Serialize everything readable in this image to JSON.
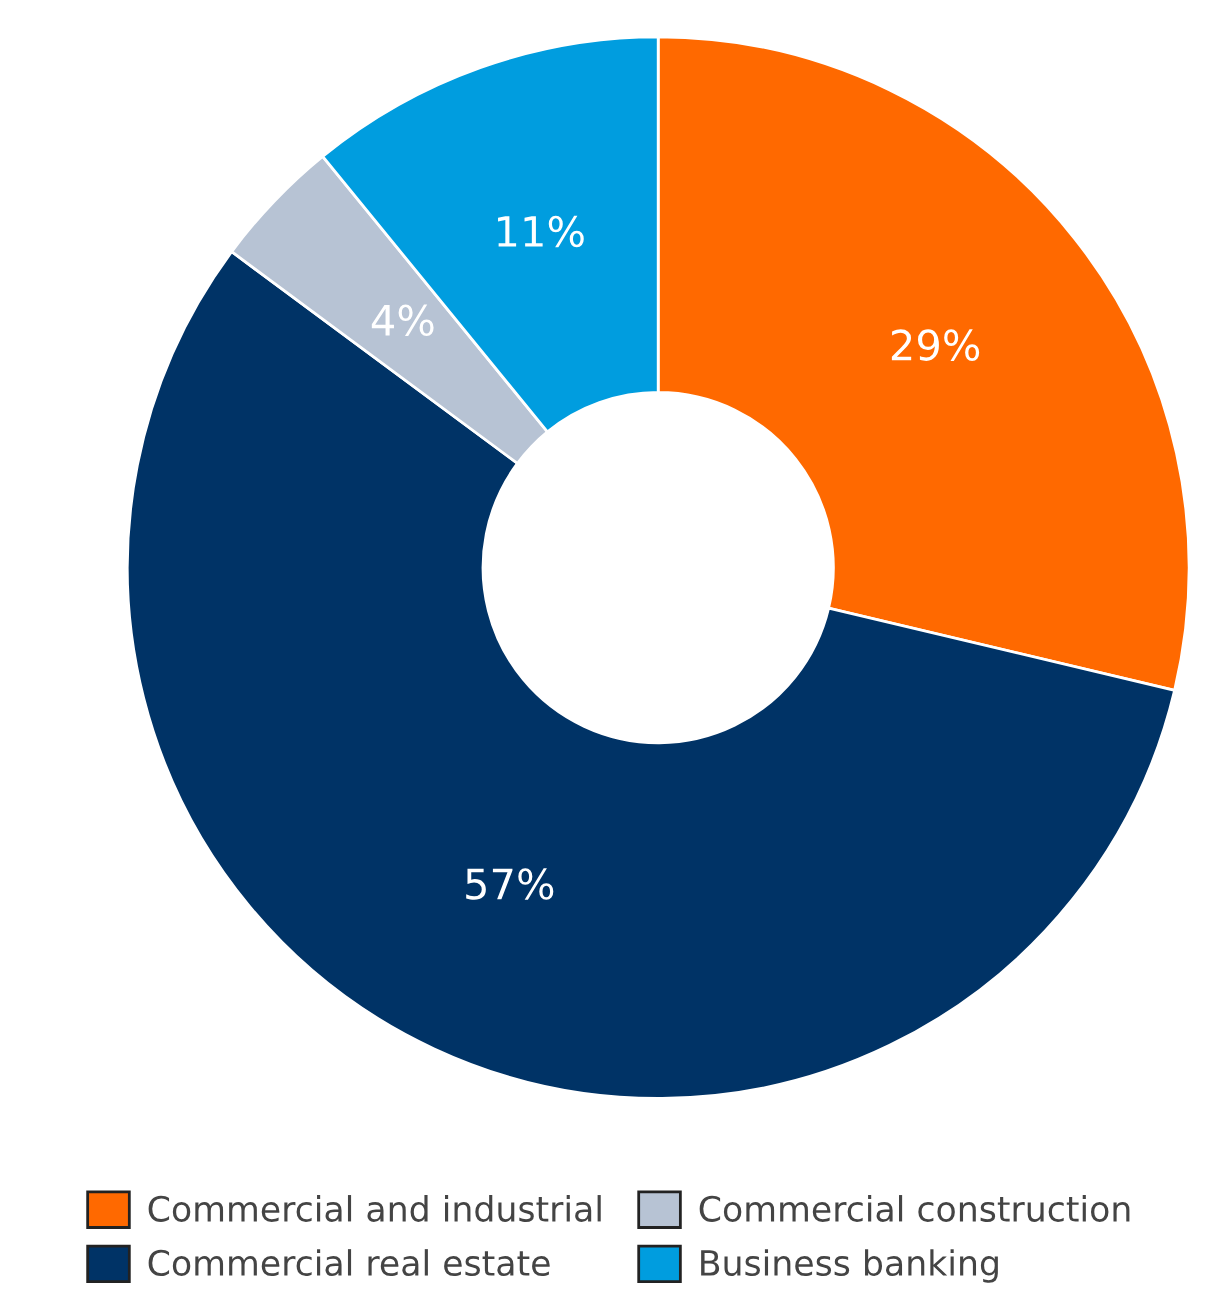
{
  "chart_data": {
    "type": "donut",
    "categories": [
      "Commercial and industrial",
      "Commercial real estate",
      "Commercial construction",
      "Business banking"
    ],
    "values": [
      29,
      57,
      4,
      11
    ],
    "colors": [
      "#ff6900",
      "#003366",
      "#b7c3d4",
      "#009ddf"
    ],
    "value_labels": [
      "29%",
      "57%",
      "4%",
      "11%"
    ],
    "legend": "bottom"
  }
}
